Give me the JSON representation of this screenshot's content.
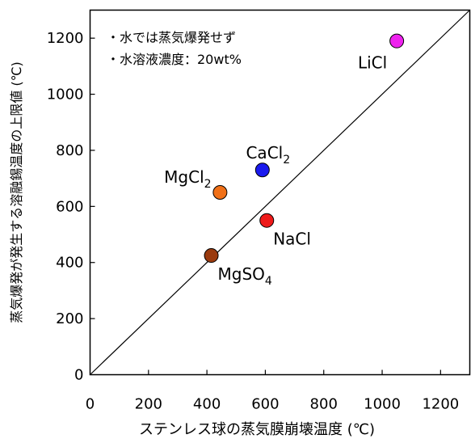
{
  "chart_data": {
    "type": "scatter",
    "xlabel": "ステンレス球の蒸気膜崩壊温度 (℃)",
    "ylabel": "蒸気爆発が発生する溶融錫温度の上限値 (℃)",
    "xlim": [
      0,
      1300
    ],
    "ylim": [
      0,
      1300
    ],
    "x_ticks": [
      0,
      200,
      400,
      600,
      800,
      1000,
      1200
    ],
    "y_ticks": [
      0,
      200,
      400,
      600,
      800,
      1000,
      1200
    ],
    "grid": false,
    "reference_line": {
      "from": [
        0,
        0
      ],
      "to": [
        1300,
        1300
      ]
    },
    "annotations": [
      "・水では蒸気爆発せず",
      "・水溶液濃度：20wt%"
    ],
    "points": [
      {
        "label": "LiCl",
        "sub": "",
        "x": 1050,
        "y": 1190,
        "color": "#ee22ee",
        "label_pos": "below-left"
      },
      {
        "label": "CaCl",
        "sub": "2",
        "x": 590,
        "y": 730,
        "color": "#1a1aee",
        "label_pos": "above"
      },
      {
        "label": "MgCl",
        "sub": "2",
        "x": 445,
        "y": 650,
        "color": "#f07018",
        "label_pos": "upper-left"
      },
      {
        "label": "NaCl",
        "sub": "",
        "x": 605,
        "y": 550,
        "color": "#ee1a1a",
        "label_pos": "below-right"
      },
      {
        "label": "MgSO",
        "sub": "4",
        "x": 415,
        "y": 425,
        "color": "#9a3a0e",
        "label_pos": "below-right"
      }
    ]
  }
}
